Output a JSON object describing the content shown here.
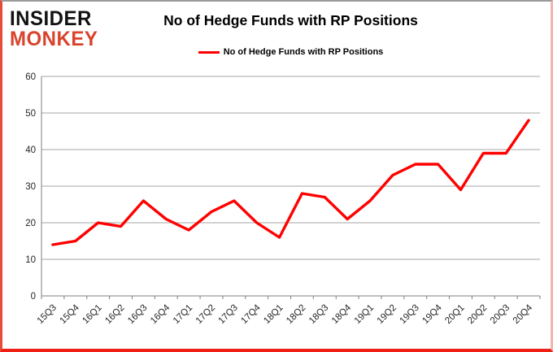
{
  "logo": {
    "line1": "INSIDER",
    "line2": "MONKEY"
  },
  "colors": {
    "line": "#ff0000",
    "grid": "#a6a6a6",
    "axis": "#7f7f7f",
    "tick_label": "#262626",
    "logo_accent": "#d9432c"
  },
  "chart_data": {
    "type": "line",
    "title": "No of Hedge Funds with RP Positions",
    "xlabel": "",
    "ylabel": "",
    "ylim": [
      0,
      60
    ],
    "yticks": [
      0,
      10,
      20,
      30,
      40,
      50,
      60
    ],
    "grid": true,
    "legend_position": "top",
    "categories": [
      "15Q3",
      "15Q4",
      "16Q1",
      "16Q2",
      "16Q3",
      "16Q4",
      "17Q1",
      "17Q2",
      "17Q3",
      "17Q4",
      "18Q1",
      "18Q2",
      "18Q3",
      "18Q4",
      "19Q1",
      "19Q2",
      "19Q3",
      "19Q4",
      "20Q1",
      "20Q2",
      "20Q3",
      "20Q4"
    ],
    "series": [
      {
        "name": "No of Hedge Funds with RP Positions",
        "color": "#ff0000",
        "values": [
          14,
          15,
          20,
          19,
          26,
          21,
          18,
          23,
          26,
          20,
          16,
          28,
          27,
          21,
          26,
          33,
          36,
          36,
          29,
          39,
          39,
          48
        ]
      }
    ]
  }
}
